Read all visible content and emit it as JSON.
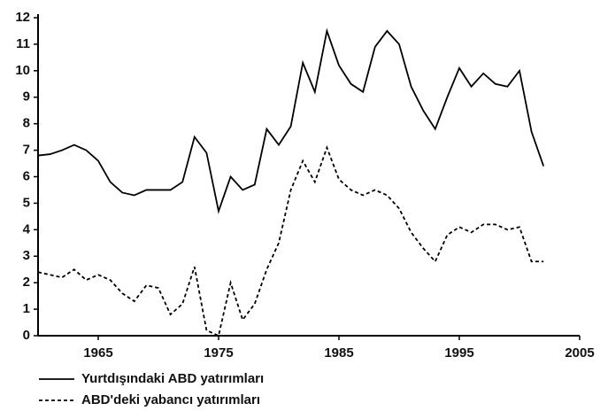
{
  "chart_data": {
    "type": "line",
    "x": [
      1960,
      1961,
      1962,
      1963,
      1964,
      1965,
      1966,
      1967,
      1968,
      1969,
      1970,
      1971,
      1972,
      1973,
      1974,
      1975,
      1976,
      1977,
      1978,
      1979,
      1980,
      1981,
      1982,
      1983,
      1984,
      1985,
      1986,
      1987,
      1988,
      1989,
      1990,
      1991,
      1992,
      1993,
      1994,
      1995,
      1996,
      1997,
      1998,
      1999,
      2000,
      2001,
      2002
    ],
    "series": [
      {
        "name": "Yurtdışındaki ABD yatırımları",
        "color": "#000000",
        "dash": "solid",
        "values": [
          6.8,
          6.85,
          7.0,
          7.2,
          7.0,
          6.6,
          5.8,
          5.4,
          5.3,
          5.5,
          5.5,
          5.5,
          5.8,
          7.5,
          6.9,
          4.7,
          6.0,
          5.5,
          5.7,
          7.8,
          7.2,
          7.9,
          10.3,
          9.2,
          11.5,
          10.2,
          9.5,
          9.2,
          10.9,
          11.5,
          11.0,
          9.4,
          8.5,
          7.8,
          9.0,
          10.1,
          9.4,
          9.9,
          9.5,
          9.4,
          10.0,
          7.7,
          6.4
        ]
      },
      {
        "name": "ABD'deki yabancı yatırımları",
        "color": "#000000",
        "dash": "dashed",
        "values": [
          2.4,
          2.3,
          2.2,
          2.5,
          2.1,
          2.3,
          2.1,
          1.6,
          1.3,
          1.9,
          1.8,
          0.8,
          1.2,
          2.6,
          0.2,
          0.0,
          2.0,
          0.6,
          1.2,
          2.5,
          3.5,
          5.5,
          6.6,
          5.8,
          7.1,
          5.9,
          5.5,
          5.3,
          5.5,
          5.3,
          4.8,
          3.9,
          3.3,
          2.8,
          3.8,
          4.1,
          3.9,
          4.2,
          4.2,
          4.0,
          4.1,
          2.8,
          2.8
        ]
      }
    ],
    "xlim": [
      1960,
      2005
    ],
    "xticks": [
      1965,
      1975,
      1985,
      1995,
      2005
    ],
    "ylim": [
      0,
      12
    ],
    "yticks": [
      0,
      1,
      2,
      3,
      4,
      5,
      6,
      7,
      8,
      9,
      10,
      11,
      12
    ],
    "grid": false,
    "legend": "bottom-left"
  }
}
